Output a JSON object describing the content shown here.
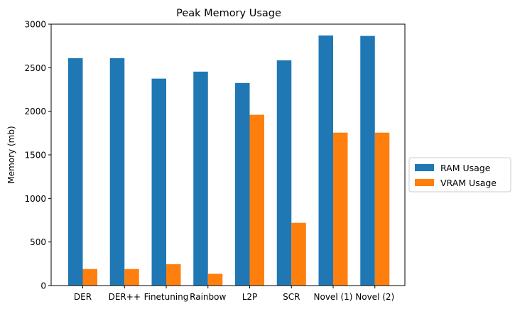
{
  "chart_data": {
    "type": "bar",
    "title": "Peak Memory Usage",
    "xlabel": "",
    "ylabel": "Memory (mb)",
    "categories": [
      "DER",
      "DER++",
      "Finetuning",
      "Rainbow",
      "L2P",
      "SCR",
      "Novel (1)",
      "Novel (2)"
    ],
    "series": [
      {
        "name": "RAM Usage",
        "color": "#1f77b4",
        "values": [
          2610,
          2610,
          2375,
          2455,
          2325,
          2585,
          2870,
          2865
        ]
      },
      {
        "name": "VRAM Usage",
        "color": "#ff7f0e",
        "values": [
          190,
          190,
          245,
          135,
          1960,
          720,
          1755,
          1755
        ]
      }
    ],
    "ylim": [
      0,
      3000
    ],
    "yticks": [
      0,
      500,
      1000,
      1500,
      2000,
      2500,
      3000
    ],
    "grid": false,
    "legend": "right, outside"
  }
}
